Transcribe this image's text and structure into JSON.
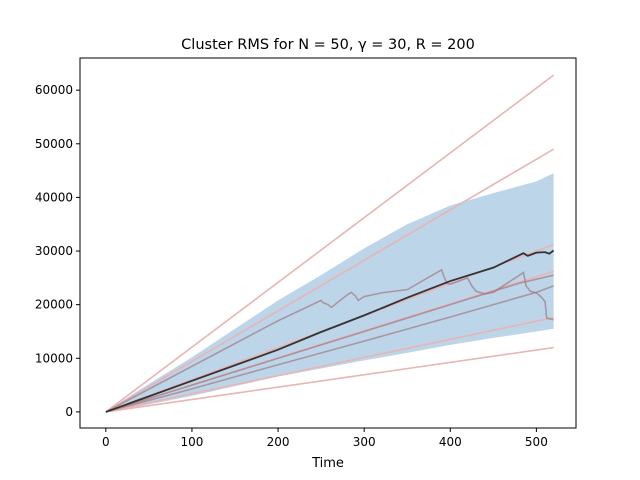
{
  "chart_data": {
    "type": "line",
    "title": "Cluster RMS for N = 50, γ = 30, R = 200",
    "xlabel": "Time",
    "ylabel": "",
    "xlim": [
      -30,
      546
    ],
    "ylim": [
      -3000,
      66000
    ],
    "xticks": [
      0,
      100,
      200,
      300,
      400,
      500
    ],
    "yticks": [
      0,
      10000,
      20000,
      30000,
      40000,
      50000,
      60000
    ],
    "grid": false,
    "legend": "none",
    "colors": {
      "mean": "#333333",
      "band": "#bcd5e8",
      "envelope": "#e8b4b4",
      "sample": "#a07a86"
    },
    "band": {
      "x": [
        0,
        30,
        60,
        100,
        150,
        200,
        250,
        300,
        350,
        400,
        450,
        500,
        520
      ],
      "lower": [
        0,
        800,
        1700,
        3000,
        4800,
        6600,
        8100,
        9600,
        11000,
        12500,
        13800,
        15000,
        15500
      ],
      "upper": [
        0,
        3200,
        6200,
        10200,
        15500,
        20800,
        25500,
        30500,
        35000,
        38500,
        40800,
        43000,
        44500
      ]
    },
    "mean": {
      "x": [
        0,
        50,
        100,
        150,
        200,
        250,
        300,
        350,
        400,
        450,
        485,
        490,
        500,
        510,
        515,
        520
      ],
      "y": [
        0,
        2900,
        5800,
        8700,
        11600,
        14900,
        18000,
        21300,
        24400,
        26900,
        29600,
        29100,
        29700,
        29800,
        29500,
        30100
      ]
    },
    "envelope_lines": [
      {
        "x": [
          0,
          520
        ],
        "y": [
          0,
          62800
        ]
      },
      {
        "x": [
          0,
          520
        ],
        "y": [
          0,
          49000
        ]
      },
      {
        "x": [
          0,
          520
        ],
        "y": [
          0,
          31200
        ]
      },
      {
        "x": [
          0,
          520
        ],
        "y": [
          0,
          26200
        ]
      },
      {
        "x": [
          0,
          520
        ],
        "y": [
          0,
          17600
        ]
      },
      {
        "x": [
          0,
          520
        ],
        "y": [
          0,
          12000
        ]
      }
    ],
    "sample_paths": [
      {
        "x": [
          0,
          100,
          200,
          250,
          252,
          258,
          262,
          280,
          285,
          290,
          293,
          300,
          320,
          350,
          390,
          392,
          396,
          400,
          420,
          425,
          430,
          440,
          450,
          485,
          488,
          493,
          500,
          505,
          510,
          512,
          520
        ],
        "y": [
          0,
          8500,
          17000,
          20800,
          20400,
          20000,
          19500,
          21800,
          22300,
          21600,
          20800,
          21500,
          22200,
          22800,
          26500,
          25500,
          24000,
          23800,
          25000,
          23500,
          22500,
          22000,
          22300,
          26000,
          23500,
          22500,
          22200,
          21500,
          20600,
          17500,
          17200
        ]
      },
      {
        "x": [
          0,
          100,
          200,
          300,
          400,
          480,
          520
        ],
        "y": [
          0,
          5000,
          10000,
          15000,
          20000,
          24000,
          25500
        ]
      },
      {
        "x": [
          0,
          100,
          200,
          300,
          400,
          500,
          520
        ],
        "y": [
          0,
          4300,
          8800,
          13200,
          17700,
          22300,
          23500
        ]
      }
    ]
  }
}
